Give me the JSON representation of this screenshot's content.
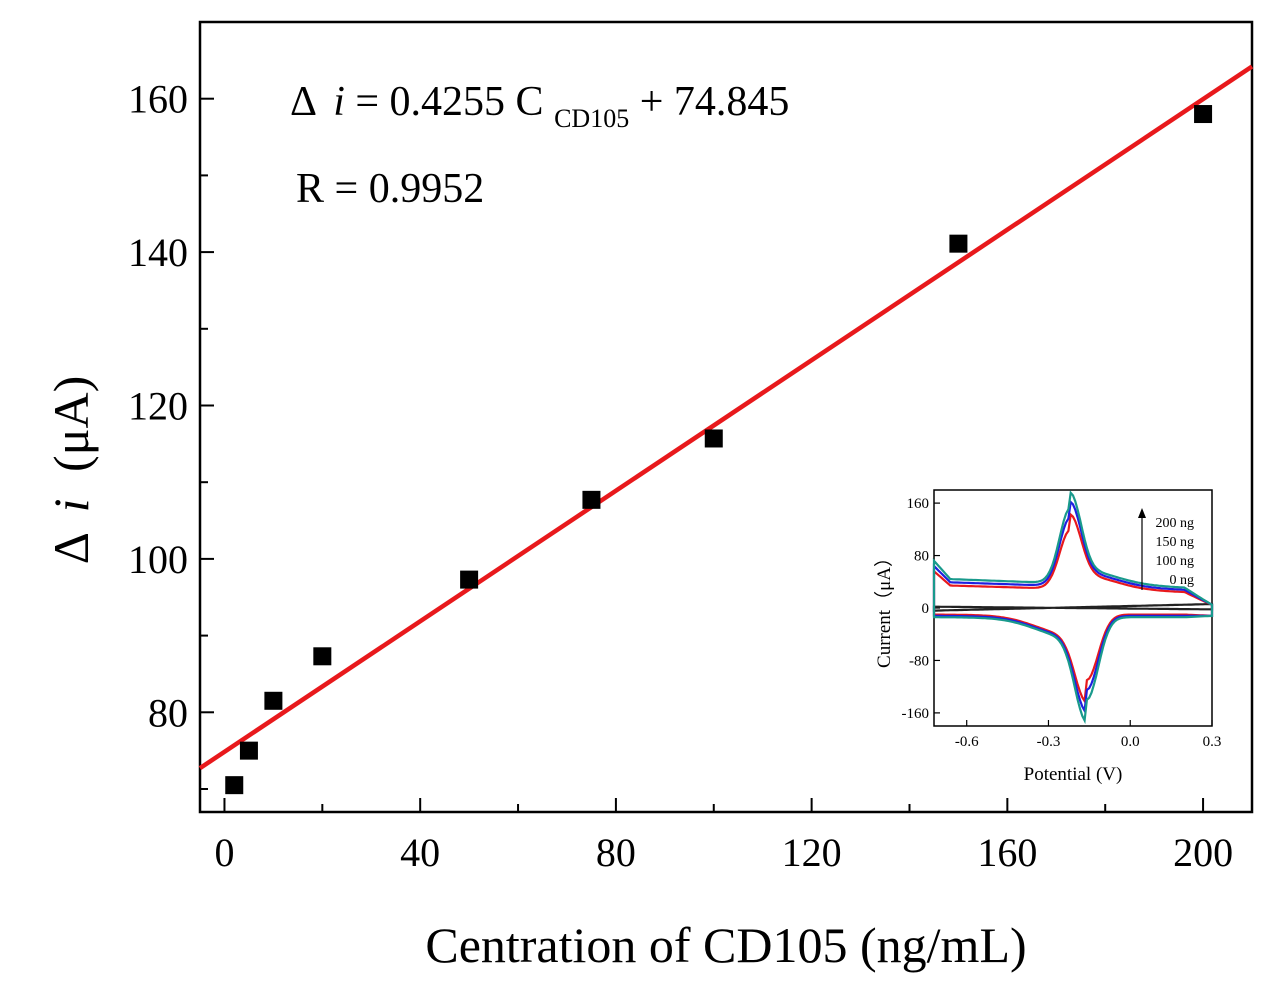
{
  "chart_data": [
    {
      "type": "scatter",
      "xlabel": "Centration of CD105 (ng/mL)",
      "ylabel_symbol": "Δ",
      "ylabel_var": "i",
      "ylabel_unit": "(μA)",
      "xlim": [
        -5,
        210
      ],
      "ylim": [
        67,
        170
      ],
      "xticks": [
        0,
        40,
        80,
        120,
        160,
        200
      ],
      "yticks": [
        80,
        100,
        120,
        140,
        160
      ],
      "grid": false,
      "series": [
        {
          "marker": "square",
          "color": "#000000",
          "x": [
            2,
            5,
            10,
            20,
            50,
            75,
            100,
            150,
            200
          ],
          "y": [
            70.5,
            75,
            81.5,
            87.3,
            97.3,
            107.7,
            115.7,
            141.1,
            158
          ]
        }
      ],
      "fit_line": {
        "color": "#e8191c",
        "slope": 0.4255,
        "intercept": 74.845
      },
      "annotations": {
        "eq_prefix": "Δ",
        "eq_var": "i",
        "eq_middle": " = 0.4255 C",
        "eq_sub": "CD105",
        "eq_suffix": " + 74.845",
        "r_text": "R = 0.9952"
      }
    },
    {
      "type": "line",
      "role": "inset",
      "xlabel": "Potential (V)",
      "ylabel": "Current（μA）",
      "xlim": [
        -0.72,
        0.3
      ],
      "ylim": [
        -180,
        180
      ],
      "xticks": [
        -0.6,
        -0.3,
        0.0,
        0.3
      ],
      "yticks": [
        -160,
        -80,
        0,
        80,
        160
      ],
      "xtick_labels": [
        "-0.6",
        "-0.3",
        "0.0",
        "0.3"
      ],
      "ytick_labels": [
        "-160",
        "-80",
        "0",
        "80",
        "160"
      ],
      "legend": [
        "200 ng",
        "150 ng",
        "100 ng",
        "0 ng"
      ],
      "legend_arrow": true,
      "series": [
        {
          "label": "0 ng",
          "color": "#222222",
          "peak_ox": 0,
          "peak_red": 0,
          "base_top": 4,
          "base_bot": -4
        },
        {
          "label": "100 ng",
          "color": "#e8191c",
          "peak_ox": 125,
          "peak_red": -110,
          "base_top": 35,
          "base_bot": -10
        },
        {
          "label": "150 ng",
          "color": "#1f1fe0",
          "peak_ox": 145,
          "peak_red": -125,
          "base_top": 40,
          "base_bot": -12
        },
        {
          "label": "200 ng",
          "color": "#199a8c",
          "peak_ox": 160,
          "peak_red": -140,
          "base_top": 45,
          "base_bot": -14
        }
      ]
    }
  ]
}
